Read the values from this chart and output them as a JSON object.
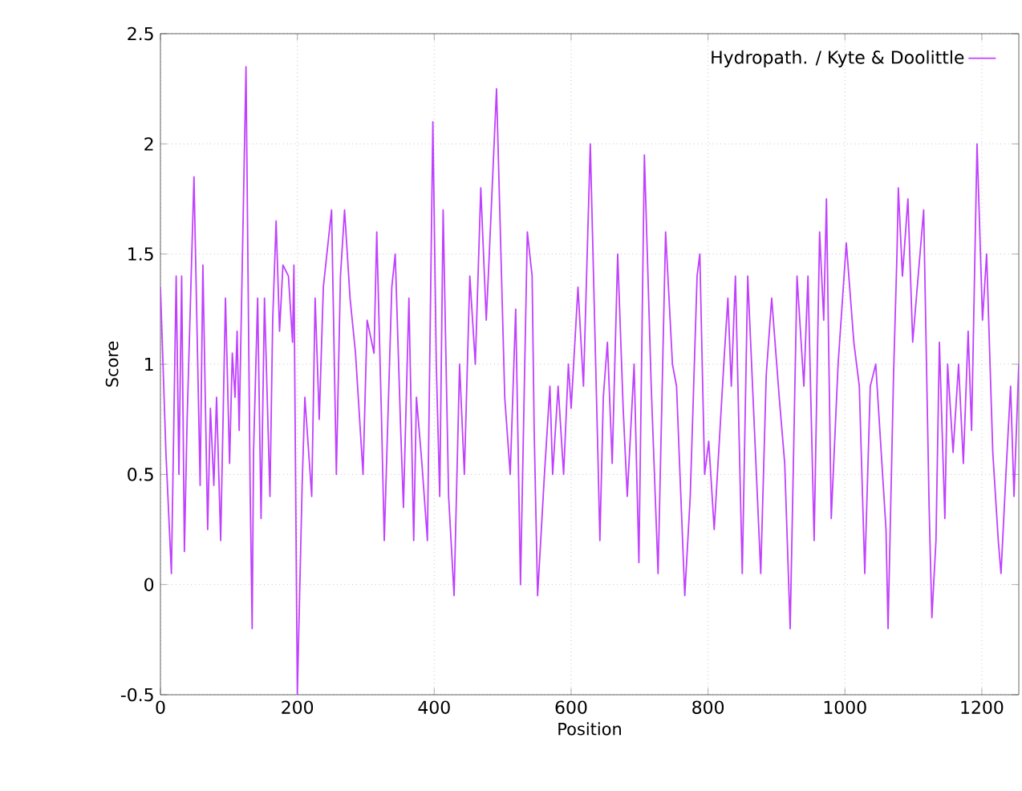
{
  "chart_data": {
    "type": "line",
    "xlabel": "Position",
    "ylabel": "Score",
    "xlim": [
      0,
      1254
    ],
    "ylim": [
      -0.5,
      2.5
    ],
    "xticks": [
      0,
      200,
      400,
      600,
      800,
      1000,
      1200
    ],
    "yticks": [
      -0.5,
      0,
      0.5,
      1,
      1.5,
      2,
      2.5
    ],
    "grid": true,
    "legend": "top right",
    "line_style": "solid",
    "marker": "none",
    "x": [
      0,
      8,
      16,
      23,
      27,
      31,
      35,
      39,
      44,
      49,
      58,
      62,
      69,
      73,
      78,
      82,
      88,
      95,
      101,
      105,
      109,
      112,
      115,
      125,
      131,
      134,
      136,
      142,
      147,
      152,
      156,
      160,
      164,
      169,
      174,
      179,
      187,
      193,
      195,
      197,
      200,
      207,
      211,
      221,
      226,
      232,
      238,
      250,
      257,
      263,
      269,
      277,
      285,
      290,
      296,
      302,
      312,
      316,
      323,
      327,
      338,
      343,
      351,
      355,
      363,
      370,
      374,
      382,
      390,
      398,
      403,
      408,
      413,
      421,
      429,
      437,
      444,
      452,
      460,
      468,
      476,
      479,
      491,
      503,
      511,
      519,
      526,
      536,
      543,
      546,
      551,
      561,
      569,
      573,
      581,
      589,
      596,
      600,
      610,
      618,
      628,
      639,
      642,
      647,
      653,
      660,
      668,
      676,
      682,
      692,
      699,
      707,
      717,
      727,
      738,
      748,
      754,
      759,
      766,
      774,
      784,
      788,
      795,
      801,
      809,
      823,
      829,
      834,
      840,
      850,
      858,
      877,
      885,
      893,
      904,
      912,
      920,
      930,
      940,
      946,
      955,
      963,
      969,
      973,
      980,
      990,
      1002,
      1013,
      1021,
      1029,
      1037,
      1045,
      1053,
      1060,
      1063,
      1071,
      1076,
      1078,
      1084,
      1092,
      1099,
      1115,
      1123,
      1127,
      1133,
      1138,
      1146,
      1150,
      1158,
      1166,
      1173,
      1180,
      1185,
      1193,
      1201,
      1207,
      1216,
      1224,
      1228,
      1236,
      1242,
      1247,
      1254
    ],
    "series": [
      {
        "name": "Hydropath. / Kyte & Doolittle",
        "color": "#c040ff",
        "values": [
          1.35,
          0.6,
          0.05,
          1.4,
          0.5,
          1.4,
          0.15,
          0.75,
          1.3,
          1.85,
          0.45,
          1.45,
          0.25,
          0.8,
          0.45,
          0.85,
          0.2,
          1.3,
          0.55,
          1.05,
          0.85,
          1.15,
          0.7,
          2.35,
          0.45,
          -0.2,
          0.6,
          1.3,
          0.3,
          1.3,
          0.85,
          0.4,
          1.2,
          1.65,
          1.15,
          1.45,
          1.4,
          1.1,
          1.45,
          0.65,
          -0.5,
          0.45,
          0.85,
          0.4,
          1.3,
          0.75,
          1.35,
          1.7,
          0.5,
          1.4,
          1.7,
          1.3,
          1.05,
          0.8,
          0.5,
          1.2,
          1.05,
          1.6,
          0.75,
          0.2,
          1.35,
          1.5,
          0.7,
          0.35,
          1.3,
          0.2,
          0.85,
          0.55,
          0.2,
          2.1,
          1.0,
          0.4,
          1.7,
          0.4,
          -0.05,
          1.0,
          0.5,
          1.4,
          1.0,
          1.8,
          1.2,
          1.4,
          2.25,
          0.85,
          0.5,
          1.25,
          0.0,
          1.6,
          1.4,
          0.7,
          -0.05,
          0.5,
          0.9,
          0.5,
          0.9,
          0.5,
          1.0,
          0.8,
          1.35,
          0.9,
          2.0,
          0.6,
          0.2,
          0.85,
          1.1,
          0.55,
          1.5,
          0.8,
          0.4,
          1.0,
          0.1,
          1.95,
          0.9,
          0.05,
          1.6,
          1.0,
          0.9,
          0.5,
          -0.05,
          0.4,
          1.4,
          1.5,
          0.5,
          0.65,
          0.25,
          1.0,
          1.3,
          0.9,
          1.4,
          0.05,
          1.4,
          0.05,
          0.95,
          1.3,
          0.85,
          0.55,
          -0.2,
          1.4,
          0.9,
          1.4,
          0.2,
          1.6,
          1.2,
          1.75,
          0.3,
          1.0,
          1.55,
          1.1,
          0.9,
          0.05,
          0.9,
          1.0,
          0.6,
          0.25,
          -0.2,
          0.95,
          1.5,
          1.8,
          1.4,
          1.75,
          1.1,
          1.7,
          0.35,
          -0.15,
          0.2,
          1.1,
          0.3,
          1.0,
          0.6,
          1.0,
          0.55,
          1.15,
          0.7,
          2.0,
          1.2,
          1.5,
          0.6,
          0.2,
          0.05,
          0.55,
          0.9,
          0.4,
          1.0
        ]
      }
    ]
  }
}
